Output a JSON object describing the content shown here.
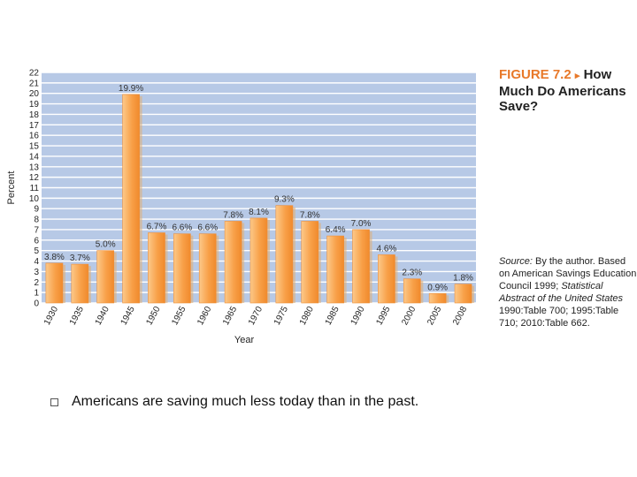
{
  "figure": {
    "number": "FIGURE 7.2",
    "arrow": "▸",
    "title": "How Much Do Americans Save?"
  },
  "source": {
    "label": "Source:",
    "text1": "By the author. Based on American Savings Education Council 1999;",
    "italic": "Statistical Abstract of the United States",
    "text2": "1990:Table 700; 1995:Table 710; 2010:Table 662."
  },
  "bullet": {
    "text": "Americans are saving much less today than in the past."
  },
  "colors": {
    "plot_background": "#b7c9e6",
    "grid": "#ffffff",
    "bar": "#f8a048",
    "bar_light": "#fcc98a",
    "accent": "#e8792a"
  },
  "chart_data": {
    "type": "bar",
    "title": "",
    "xlabel": "Year",
    "ylabel": "Percent",
    "ylim": [
      0,
      22
    ],
    "yticks": [
      0,
      1,
      2,
      3,
      4,
      5,
      6,
      7,
      8,
      9,
      10,
      11,
      12,
      13,
      14,
      15,
      16,
      17,
      18,
      19,
      20,
      21,
      22
    ],
    "grid": true,
    "categories": [
      "1930",
      "1935",
      "1940",
      "1945",
      "1950",
      "1955",
      "1960",
      "1965",
      "1970",
      "1975",
      "1980",
      "1985",
      "1990",
      "1995",
      "2000",
      "2005",
      "2008"
    ],
    "values": [
      3.8,
      3.7,
      5.0,
      19.9,
      6.7,
      6.6,
      6.6,
      7.8,
      8.1,
      9.3,
      7.8,
      6.4,
      7.0,
      4.6,
      2.3,
      0.9,
      1.8
    ],
    "data_labels": [
      "3.8%",
      "3.7%",
      "5.0%",
      "19.9%",
      "6.7%",
      "6.6%",
      "6.6%",
      "7.8%",
      "8.1%",
      "9.3%",
      "7.8%",
      "6.4%",
      "7.0%",
      "4.6%",
      "2.3%",
      "0.9%",
      "1.8%"
    ]
  }
}
